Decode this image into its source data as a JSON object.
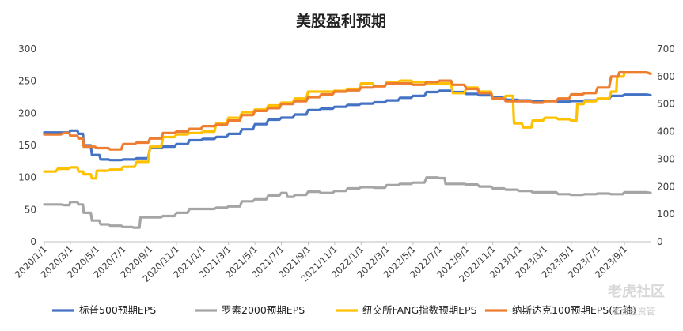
{
  "chart_data": {
    "type": "line",
    "title": "美股盈利预期",
    "x_tick_labels": [
      "2020/1/1",
      "2020/3/1",
      "2020/5/1",
      "2020/7/1",
      "2020/9/1",
      "2020/11/1",
      "2021/1/1",
      "2021/3/1",
      "2021/5/1",
      "2021/7/1",
      "2021/9/1",
      "2021/11/1",
      "2022/1/1",
      "2022/3/1",
      "2022/5/1",
      "2022/7/1",
      "2022/9/1",
      "2022/11/1",
      "2023/1/1",
      "2023/3/1",
      "2023/5/1",
      "2023/7/1",
      "2023/9/1"
    ],
    "x_range": [
      "2020/1/1",
      "2023/10/31"
    ],
    "y_left": {
      "range": [
        0,
        300
      ],
      "ticks": [
        0,
        50,
        100,
        150,
        200,
        250,
        300
      ]
    },
    "y_right": {
      "range": [
        0,
        700
      ],
      "ticks": [
        0,
        100,
        200,
        300,
        400,
        500,
        600,
        700
      ]
    },
    "legend_position": "bottom",
    "grid": false,
    "series": [
      {
        "name": "标普500预期EPS",
        "axis": "left",
        "color": "#4472C4",
        "points": [
          [
            "2020/1/1",
            170
          ],
          [
            "2020/2/15",
            170
          ],
          [
            "2020/3/1",
            173
          ],
          [
            "2020/3/20",
            168
          ],
          [
            "2020/4/1",
            150
          ],
          [
            "2020/4/20",
            135
          ],
          [
            "2020/5/10",
            128
          ],
          [
            "2020/6/1",
            127
          ],
          [
            "2020/7/1",
            128
          ],
          [
            "2020/8/1",
            130
          ],
          [
            "2020/9/1",
            146
          ],
          [
            "2020/10/1",
            148
          ],
          [
            "2020/11/1",
            152
          ],
          [
            "2020/12/1",
            158
          ],
          [
            "2021/1/1",
            160
          ],
          [
            "2021/2/1",
            163
          ],
          [
            "2021/3/1",
            168
          ],
          [
            "2021/4/1",
            175
          ],
          [
            "2021/5/1",
            183
          ],
          [
            "2021/6/1",
            190
          ],
          [
            "2021/7/1",
            193
          ],
          [
            "2021/8/1",
            198
          ],
          [
            "2021/9/1",
            205
          ],
          [
            "2021/10/1",
            207
          ],
          [
            "2021/11/1",
            210
          ],
          [
            "2021/12/1",
            213
          ],
          [
            "2022/1/1",
            215
          ],
          [
            "2022/2/1",
            217
          ],
          [
            "2022/3/1",
            220
          ],
          [
            "2022/4/1",
            224
          ],
          [
            "2022/5/1",
            227
          ],
          [
            "2022/6/1",
            233
          ],
          [
            "2022/7/1",
            235
          ],
          [
            "2022/8/1",
            233
          ],
          [
            "2022/9/1",
            230
          ],
          [
            "2022/10/1",
            228
          ],
          [
            "2022/11/1",
            225
          ],
          [
            "2022/12/1",
            221
          ],
          [
            "2023/1/1",
            220
          ],
          [
            "2023/2/1",
            219
          ],
          [
            "2023/3/1",
            219
          ],
          [
            "2023/4/1",
            218
          ],
          [
            "2023/5/1",
            219
          ],
          [
            "2023/6/1",
            220
          ],
          [
            "2023/7/1",
            222
          ],
          [
            "2023/8/1",
            227
          ],
          [
            "2023/9/1",
            229
          ],
          [
            "2023/10/31",
            228
          ]
        ]
      },
      {
        "name": "罗素2000预期EPS",
        "axis": "left",
        "color": "#A5A5A5",
        "points": [
          [
            "2020/1/1",
            58
          ],
          [
            "2020/2/15",
            57
          ],
          [
            "2020/3/1",
            62
          ],
          [
            "2020/3/20",
            58
          ],
          [
            "2020/4/1",
            45
          ],
          [
            "2020/4/20",
            33
          ],
          [
            "2020/5/10",
            27
          ],
          [
            "2020/6/1",
            25
          ],
          [
            "2020/7/1",
            23
          ],
          [
            "2020/7/25",
            22
          ],
          [
            "2020/8/10",
            38
          ],
          [
            "2020/9/1",
            38
          ],
          [
            "2020/10/1",
            40
          ],
          [
            "2020/11/1",
            45
          ],
          [
            "2020/12/1",
            51
          ],
          [
            "2021/1/1",
            51
          ],
          [
            "2021/2/1",
            53
          ],
          [
            "2021/3/1",
            55
          ],
          [
            "2021/4/1",
            63
          ],
          [
            "2021/5/1",
            66
          ],
          [
            "2021/6/1",
            72
          ],
          [
            "2021/7/1",
            76
          ],
          [
            "2021/7/15",
            70
          ],
          [
            "2021/8/1",
            73
          ],
          [
            "2021/9/1",
            78
          ],
          [
            "2021/10/1",
            76
          ],
          [
            "2021/11/1",
            79
          ],
          [
            "2021/12/1",
            83
          ],
          [
            "2022/1/1",
            85
          ],
          [
            "2022/2/1",
            84
          ],
          [
            "2022/3/1",
            88
          ],
          [
            "2022/4/1",
            90
          ],
          [
            "2022/5/1",
            92
          ],
          [
            "2022/6/1",
            100
          ],
          [
            "2022/7/1",
            99
          ],
          [
            "2022/7/15",
            90
          ],
          [
            "2022/8/1",
            90
          ],
          [
            "2022/9/1",
            89
          ],
          [
            "2022/10/1",
            86
          ],
          [
            "2022/11/1",
            83
          ],
          [
            "2022/12/1",
            81
          ],
          [
            "2023/1/1",
            79
          ],
          [
            "2023/2/1",
            77
          ],
          [
            "2023/3/1",
            77
          ],
          [
            "2023/4/1",
            74
          ],
          [
            "2023/5/1",
            73
          ],
          [
            "2023/6/1",
            74
          ],
          [
            "2023/7/1",
            75
          ],
          [
            "2023/8/1",
            74
          ],
          [
            "2023/9/1",
            77
          ],
          [
            "2023/10/31",
            76
          ]
        ]
      },
      {
        "name": "纽交所FANG指数预期EPS",
        "axis": "right",
        "color": "#FFC000",
        "points": [
          [
            "2020/1/1",
            255
          ],
          [
            "2020/2/1",
            265
          ],
          [
            "2020/3/1",
            270
          ],
          [
            "2020/3/20",
            255
          ],
          [
            "2020/4/1",
            245
          ],
          [
            "2020/4/20",
            230
          ],
          [
            "2020/5/1",
            258
          ],
          [
            "2020/6/1",
            262
          ],
          [
            "2020/7/1",
            272
          ],
          [
            "2020/8/1",
            290
          ],
          [
            "2020/9/1",
            345
          ],
          [
            "2020/10/1",
            380
          ],
          [
            "2020/11/1",
            390
          ],
          [
            "2020/12/1",
            395
          ],
          [
            "2021/1/1",
            400
          ],
          [
            "2021/2/1",
            430
          ],
          [
            "2021/3/1",
            450
          ],
          [
            "2021/4/1",
            470
          ],
          [
            "2021/5/1",
            480
          ],
          [
            "2021/6/1",
            495
          ],
          [
            "2021/7/1",
            505
          ],
          [
            "2021/8/1",
            520
          ],
          [
            "2021/9/1",
            545
          ],
          [
            "2021/10/1",
            545
          ],
          [
            "2021/11/1",
            548
          ],
          [
            "2021/12/1",
            555
          ],
          [
            "2022/1/1",
            575
          ],
          [
            "2022/2/1",
            565
          ],
          [
            "2022/3/1",
            580
          ],
          [
            "2022/4/1",
            585
          ],
          [
            "2022/5/1",
            580
          ],
          [
            "2022/6/1",
            575
          ],
          [
            "2022/7/1",
            575
          ],
          [
            "2022/8/1",
            540
          ],
          [
            "2022/9/1",
            560
          ],
          [
            "2022/10/1",
            545
          ],
          [
            "2022/11/1",
            520
          ],
          [
            "2022/12/1",
            530
          ],
          [
            "2022/12/20",
            430
          ],
          [
            "2023/1/10",
            415
          ],
          [
            "2023/2/1",
            440
          ],
          [
            "2023/3/1",
            450
          ],
          [
            "2023/4/1",
            445
          ],
          [
            "2023/5/1",
            440
          ],
          [
            "2023/5/15",
            500
          ],
          [
            "2023/6/1",
            510
          ],
          [
            "2023/7/1",
            520
          ],
          [
            "2023/8/1",
            545
          ],
          [
            "2023/8/15",
            600
          ],
          [
            "2023/9/1",
            615
          ],
          [
            "2023/10/31",
            610
          ]
        ]
      },
      {
        "name": "纳斯达克100预期EPS(右轴)",
        "axis": "right",
        "color": "#ED7D31",
        "points": [
          [
            "2020/1/1",
            390
          ],
          [
            "2020/2/15",
            395
          ],
          [
            "2020/3/1",
            385
          ],
          [
            "2020/3/20",
            375
          ],
          [
            "2020/4/1",
            345
          ],
          [
            "2020/5/1",
            340
          ],
          [
            "2020/6/1",
            335
          ],
          [
            "2020/7/1",
            355
          ],
          [
            "2020/8/1",
            360
          ],
          [
            "2020/9/1",
            375
          ],
          [
            "2020/10/1",
            395
          ],
          [
            "2020/11/1",
            400
          ],
          [
            "2020/12/1",
            410
          ],
          [
            "2021/1/1",
            420
          ],
          [
            "2021/2/1",
            425
          ],
          [
            "2021/3/1",
            440
          ],
          [
            "2021/4/1",
            460
          ],
          [
            "2021/5/1",
            475
          ],
          [
            "2021/6/1",
            485
          ],
          [
            "2021/7/1",
            500
          ],
          [
            "2021/8/1",
            510
          ],
          [
            "2021/9/1",
            525
          ],
          [
            "2021/10/1",
            535
          ],
          [
            "2021/11/1",
            545
          ],
          [
            "2021/12/1",
            550
          ],
          [
            "2022/1/1",
            560
          ],
          [
            "2022/2/1",
            565
          ],
          [
            "2022/3/1",
            575
          ],
          [
            "2022/4/1",
            575
          ],
          [
            "2022/5/1",
            570
          ],
          [
            "2022/6/1",
            580
          ],
          [
            "2022/7/1",
            585
          ],
          [
            "2022/8/1",
            570
          ],
          [
            "2022/9/1",
            555
          ],
          [
            "2022/10/1",
            540
          ],
          [
            "2022/11/1",
            520
          ],
          [
            "2022/12/1",
            510
          ],
          [
            "2023/1/1",
            510
          ],
          [
            "2023/2/1",
            505
          ],
          [
            "2023/3/1",
            510
          ],
          [
            "2023/4/1",
            520
          ],
          [
            "2023/5/1",
            535
          ],
          [
            "2023/6/1",
            540
          ],
          [
            "2023/7/1",
            560
          ],
          [
            "2023/8/1",
            600
          ],
          [
            "2023/8/20",
            615
          ],
          [
            "2023/9/1",
            615
          ],
          [
            "2023/10/31",
            610
          ]
        ]
      }
    ]
  },
  "watermark": {
    "brand": "老虎社区",
    "sub": "老虎投资管"
  }
}
